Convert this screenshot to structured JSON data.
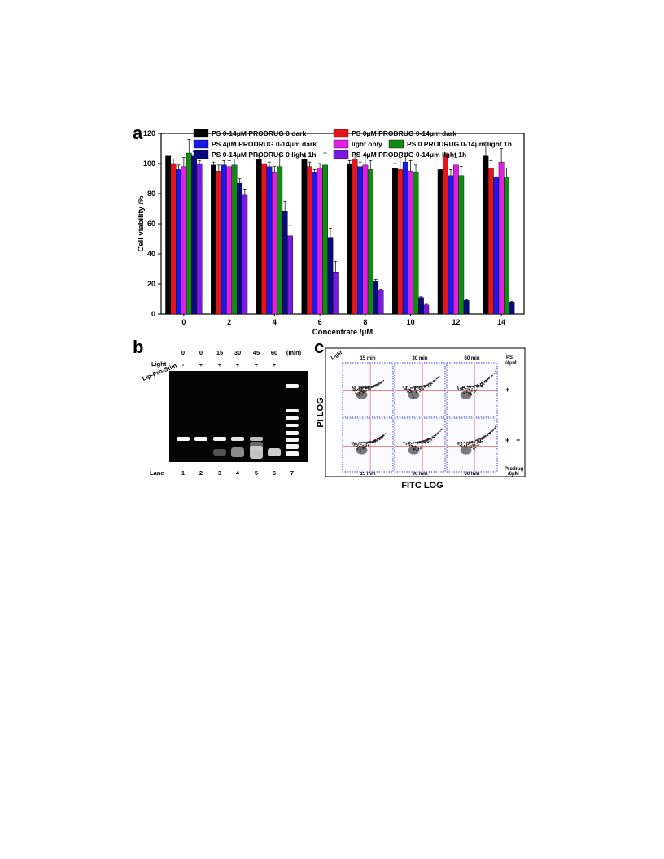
{
  "panels": {
    "a_letter": "a",
    "b_letter": "b",
    "c_letter": "c"
  },
  "chart_data": [
    {
      "type": "bar",
      "ylabel": "Cell viability /%",
      "xlabel": "Concentrate /μM",
      "ylim": [
        0,
        120
      ],
      "yticks": [
        "0",
        "20",
        "40",
        "60",
        "80",
        "100",
        "120"
      ],
      "categories": [
        "0",
        "2",
        "4",
        "6",
        "8",
        "10",
        "12",
        "14"
      ],
      "legend_position": "top",
      "series": [
        {
          "name": "PS 0-14μM PRODRUG 0 dark",
          "color": "#000000",
          "values": [
            105,
            99,
            103,
            103,
            100,
            97,
            96,
            105
          ],
          "errors": [
            4,
            2,
            2,
            2,
            2,
            3,
            0,
            9
          ]
        },
        {
          "name": "PS 0μM PRODRUG 0-14μm  dark",
          "color": "#e8141c",
          "values": [
            100,
            95,
            100,
            98,
            103,
            96,
            106,
            97
          ],
          "errors": [
            3,
            4,
            3,
            3,
            3,
            8,
            1,
            5
          ]
        },
        {
          "name": "PS 4μM PRODRUG 0-14μm  dark",
          "color": "#1a1ae8",
          "values": [
            96,
            99,
            98,
            94,
            98,
            101,
            92,
            91
          ],
          "errors": [
            3,
            3,
            3,
            2,
            3,
            6,
            4,
            6
          ]
        },
        {
          "name": "light only",
          "color": "#e020e0",
          "values": [
            98,
            98,
            94,
            97,
            99,
            95,
            99,
            101
          ],
          "errors": [
            6,
            4,
            4,
            3,
            7,
            7,
            5,
            9
          ]
        },
        {
          "name": "PS 0 PRODRUG 0-14μm light 1h",
          "color": "#138a13",
          "values": [
            107,
            99,
            98,
            99,
            96,
            94,
            92,
            91
          ],
          "errors": [
            9,
            4,
            8,
            8,
            6,
            5,
            6,
            6
          ]
        },
        {
          "name": "PS 0-14μM PRODRUG 0 light 1h",
          "color": "#0a0a80",
          "values": [
            105,
            87,
            68,
            51,
            22,
            11,
            9,
            8
          ],
          "errors": [
            3,
            3,
            7,
            6,
            1,
            0.5,
            0.5,
            0.5
          ]
        },
        {
          "name": "PS 4μM PRODRUG 0-14μm light 1h",
          "color": "#7a1ae0",
          "values": [
            100,
            79,
            52,
            28,
            16,
            6,
            0,
            0
          ],
          "errors": [
            2,
            4,
            7,
            7,
            0.5,
            0.5,
            0,
            0
          ]
        }
      ]
    }
  ],
  "gel": {
    "row_light_label": "Light",
    "row_lps_label": "Lip-Pro-Stim",
    "times": [
      "0",
      "0",
      "15",
      "30",
      "45",
      "60",
      "(min)"
    ],
    "signs": [
      "-",
      "+",
      "+",
      "+",
      "+",
      "+"
    ],
    "lane_label": "Lane",
    "lanes": [
      "1",
      "2",
      "3",
      "4",
      "5",
      "6",
      "7"
    ]
  },
  "flow": {
    "light_label": "Light",
    "ps_label": "PS\n/4μM",
    "ps_label_line1": "PS",
    "ps_label_line2": "/4μM",
    "prodrug_label_line1": "Prodrug",
    "prodrug_label_line2": "/6μM",
    "top_times": [
      "15 min",
      "30 min",
      "60 min"
    ],
    "bottom_times": [
      "15 min",
      "30 min",
      "60 min"
    ],
    "row1_signs": [
      "+",
      "-"
    ],
    "row2_signs": [
      "+",
      "+"
    ],
    "ylabel": "PI LOG",
    "xlabel": "FITC LOG"
  }
}
